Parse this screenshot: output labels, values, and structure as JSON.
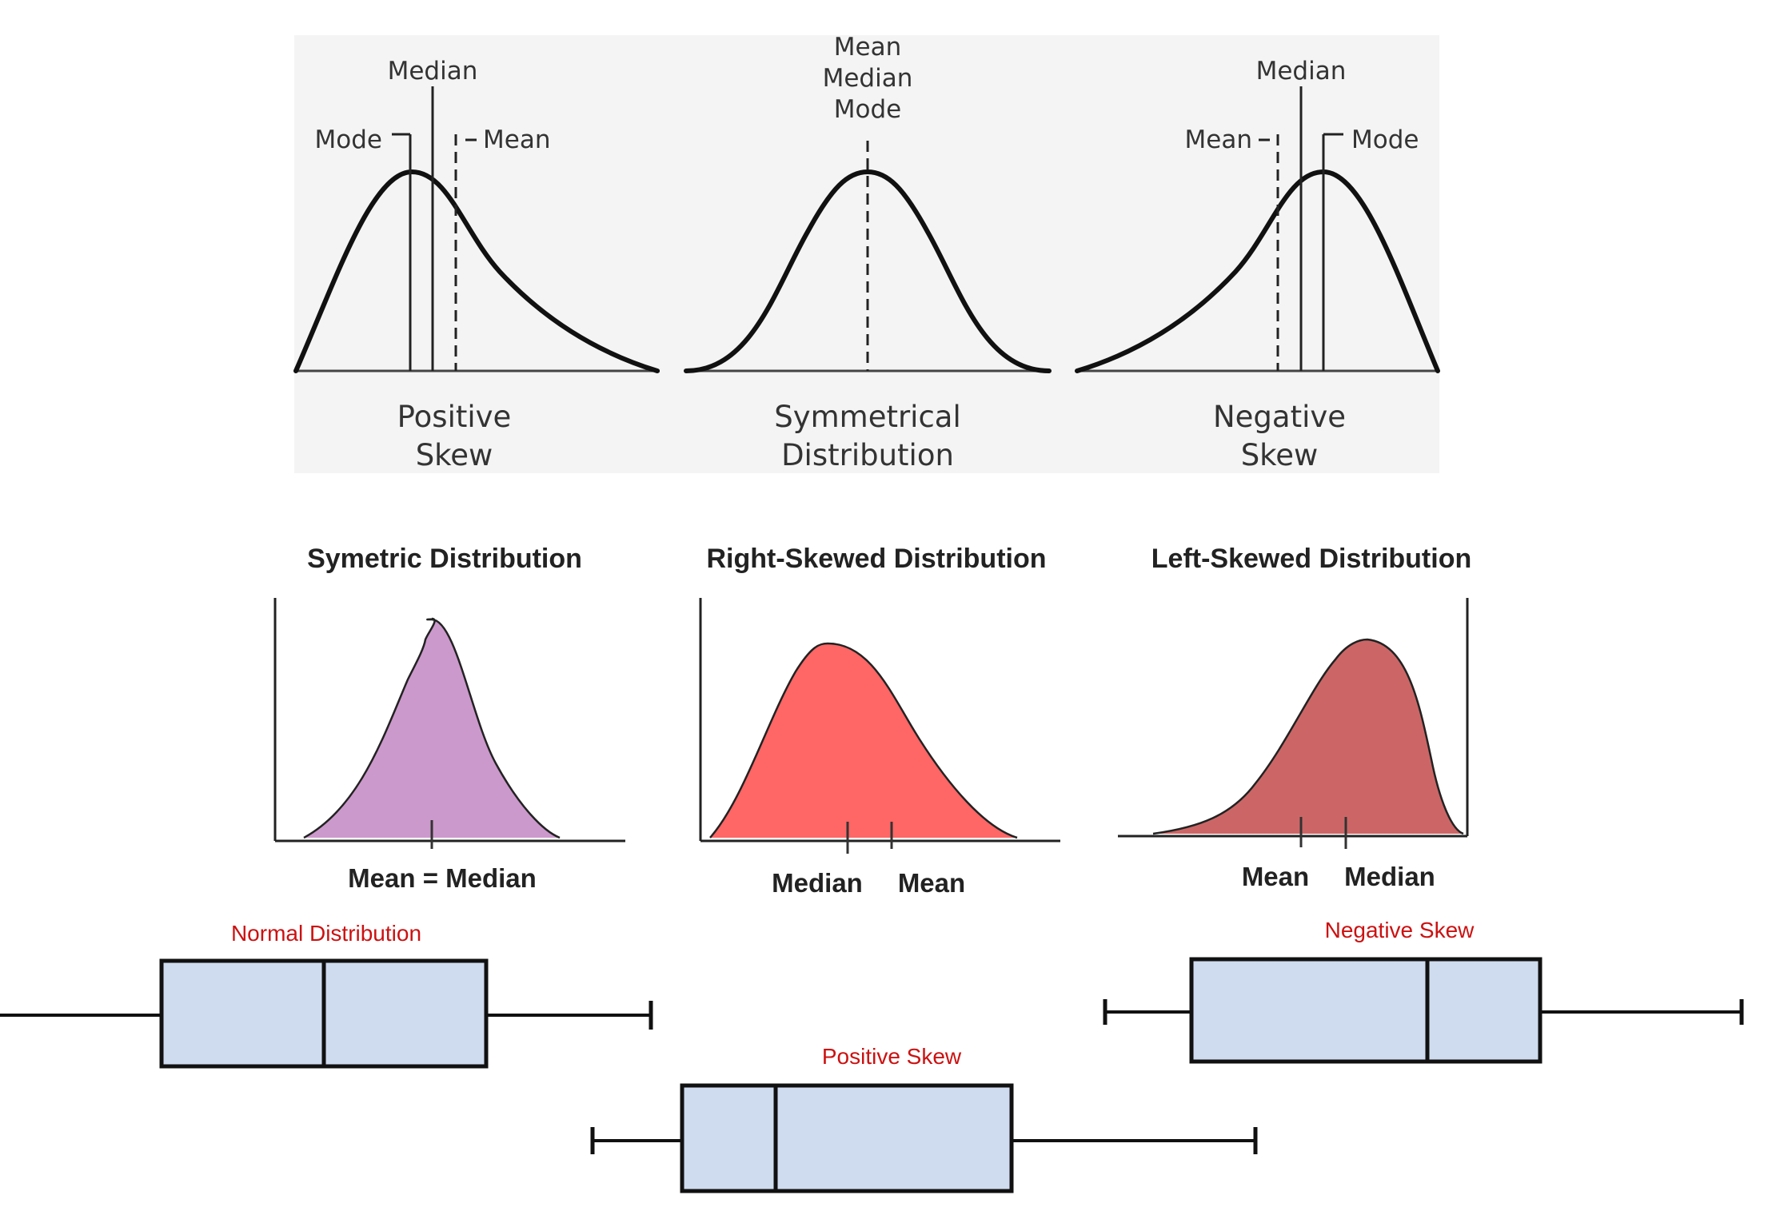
{
  "panel_top": {
    "positive": {
      "labels": {
        "median": "Median",
        "mode": "Mode",
        "mean": "Mean"
      },
      "caption": [
        "Positive",
        "Skew"
      ]
    },
    "symmetric": {
      "labels": [
        "Mean",
        "Median",
        "Mode"
      ],
      "caption": [
        "Symmetrical",
        "Distribution"
      ]
    },
    "negative": {
      "labels": {
        "median": "Median",
        "mean": "Mean",
        "mode": "Mode"
      },
      "caption": [
        "Negative",
        "Skew"
      ]
    }
  },
  "panel_mid": {
    "symmetric": {
      "title": "Symetric Distribution",
      "axis_label": "Mean = Median",
      "fill": "#cc99cc"
    },
    "right_skewed": {
      "title": "Right-Skewed Distribution",
      "labels": {
        "median": "Median",
        "mean": "Mean"
      },
      "fill": "#ff6666"
    },
    "left_skewed": {
      "title": "Left-Skewed Distribution",
      "labels": {
        "mean": "Mean",
        "median": "Median"
      },
      "fill": "#cc6666"
    }
  },
  "boxplots": {
    "normal": {
      "label": "Normal Distribution"
    },
    "positive": {
      "label": "Positive Skew"
    },
    "negative": {
      "label": "Negative Skew"
    },
    "box_fill": "#cfdcf0",
    "label_color": "#cc1111"
  }
}
